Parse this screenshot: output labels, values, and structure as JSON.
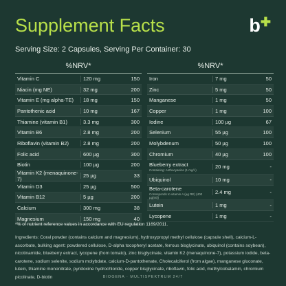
{
  "header": {
    "title": "Supplement Facts",
    "logo": "b",
    "serving": "Serving Size: 2 Capsules, Serving Per Container: 30"
  },
  "left_table": {
    "header": "%NRV*",
    "rows": [
      [
        "Vitamin C",
        "120 mg",
        "150"
      ],
      [
        "Niacin (mg NE)",
        "32 mg",
        "200"
      ],
      [
        "Vitamin E (mg alpha-TE)",
        "18 mg",
        "150"
      ],
      [
        "Pantothenic acid",
        "10 mg",
        "167"
      ],
      [
        "Thiamine (vitamin B1)",
        "3.3 mg",
        "300"
      ],
      [
        "Vitamin B6",
        "2.8 mg",
        "200"
      ],
      [
        "Riboflavin (vitamin B2)",
        "2.8 mg",
        "200"
      ],
      [
        "Folic acid",
        "600 µg",
        "300"
      ],
      [
        "Biotin",
        "100 µg",
        "200"
      ],
      [
        "Vitamin K2 (menaquinone-7)",
        "25 µg",
        "33"
      ],
      [
        "Vitamin D3",
        "25 µg",
        "500"
      ],
      [
        "Vitamin B12",
        "5 µg",
        "200"
      ],
      [
        "Calcium",
        "300 mg",
        "38"
      ],
      [
        "Magnesium",
        "150 mg",
        "40"
      ]
    ]
  },
  "right_table": {
    "header": "%NRV*",
    "rows": [
      [
        "Iron",
        "7 mg",
        "50"
      ],
      [
        "Zinc",
        "5 mg",
        "50"
      ],
      [
        "Manganese",
        "1 mg",
        "50"
      ],
      [
        "Copper",
        "1 mg",
        "100"
      ],
      [
        "Iodine",
        "100 µg",
        "67"
      ],
      [
        "Selenium",
        "55 µg",
        "100"
      ],
      [
        "Molybdenum",
        "50 µg",
        "100"
      ],
      [
        "Chromium",
        "40 µg",
        "100"
      ],
      [
        "Blueberry extract",
        "20 mg",
        "-",
        "Containing: Anthocyanins (1 mg/l-)"
      ],
      [
        "Ubiquinol",
        "10 mg",
        "-"
      ],
      [
        "Beta-carotene",
        "2.4 mg",
        "-",
        "Corresponds to vitamin A (µg RE) (400 µg[50])"
      ],
      [
        "Lutein",
        "1 mg",
        "-"
      ],
      [
        "Lycopene",
        "1 mg",
        "-"
      ]
    ]
  },
  "footnote": "*% of nutrient reference values in accordance with EU regulation 1169/2011.",
  "ingredients": "Ingredients: Coral powder (contains calcium and magnesium), hydroxypropyl methyl cellulose (capsule shell), calcium-L-ascorbate, bulking agent: powdered cellulose, D-alpha tocopheryl acetate, ferrous bisglycinate, ubiquinol (contains soybean), nicotinamide, blueberry extract, lycopene (from tomato), zinc bisglycinate, vitamin K2 (menaquinone-7), potassium iodide, beta-carotene, sodium selenite, sodium molybdate, calcium-D-pantothenate, Cholecalciferol (from algae), manganese gluconate, lutein, thiamine mononitrate, pyridoxine hydrochloride, copper bisglycinate, riboflavin, folic acid, methylcobalamin, chromium picolinate, D-biotin",
  "footer": "BIOGENA · MULTISPEKTRUM 24/7"
}
